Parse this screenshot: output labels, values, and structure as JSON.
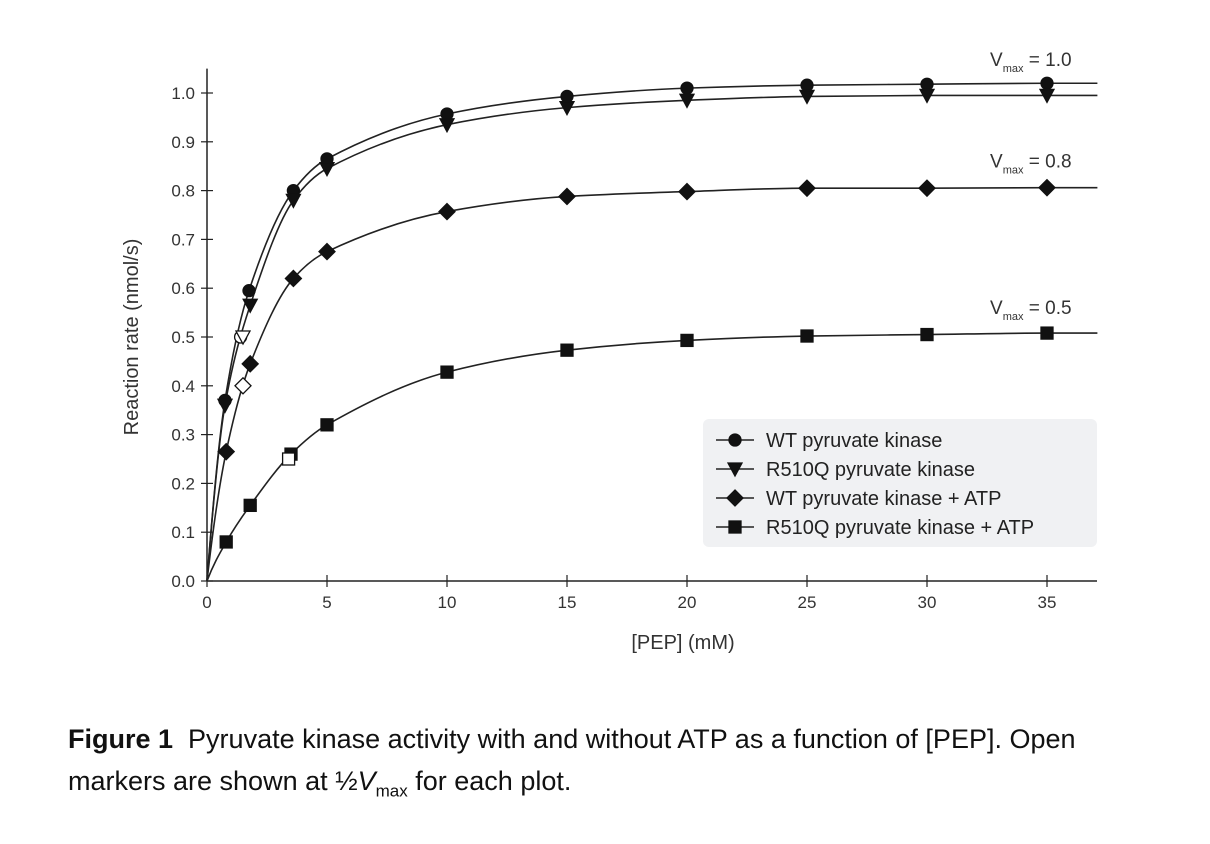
{
  "chart_data": {
    "type": "line",
    "xlabel": "[PEP] (mM)",
    "ylabel": "Reaction rate (nmol/s)",
    "xlim": [
      0,
      37
    ],
    "ylim": [
      0,
      1.0
    ],
    "xticks": [
      0,
      5,
      10,
      15,
      20,
      25,
      30,
      35
    ],
    "yticks": [
      "0.0",
      "0.1",
      "0.2",
      "0.3",
      "0.4",
      "0.5",
      "0.6",
      "0.7",
      "0.8",
      "0.9",
      "1.0"
    ],
    "grid": false,
    "legend_position": "lower-right",
    "series": [
      {
        "name": "WT pyruvate kinase",
        "marker": "circle",
        "x": [
          0.75,
          1.75,
          3.6,
          5,
          10,
          15,
          20,
          25,
          30,
          35
        ],
        "y": [
          0.37,
          0.595,
          0.8,
          0.865,
          0.957,
          0.993,
          1.01,
          1.016,
          1.018,
          1.02
        ],
        "half_vmax_point": {
          "x": 1.4,
          "y": 0.5
        }
      },
      {
        "name": "R510Q pyruvate kinase",
        "marker": "triangle-down",
        "x": [
          0.75,
          1.8,
          3.6,
          5,
          10,
          15,
          20,
          25,
          30,
          35
        ],
        "y": [
          0.36,
          0.565,
          0.78,
          0.845,
          0.935,
          0.97,
          0.985,
          0.993,
          0.995,
          0.995
        ],
        "half_vmax_point": {
          "x": 1.5,
          "y": 0.5
        }
      },
      {
        "name": "WT pyruvate kinase + ATP",
        "marker": "diamond",
        "x": [
          0.8,
          1.8,
          3.6,
          5,
          10,
          15,
          20,
          25,
          30,
          35
        ],
        "y": [
          0.265,
          0.445,
          0.62,
          0.675,
          0.757,
          0.788,
          0.798,
          0.805,
          0.805,
          0.806
        ],
        "half_vmax_point": {
          "x": 1.5,
          "y": 0.4
        }
      },
      {
        "name": "R510Q pyruvate kinase + ATP",
        "marker": "square",
        "x": [
          0.8,
          1.8,
          3.5,
          5,
          10,
          15,
          20,
          25,
          30,
          35
        ],
        "y": [
          0.08,
          0.155,
          0.26,
          0.32,
          0.428,
          0.473,
          0.493,
          0.502,
          0.505,
          0.508
        ],
        "half_vmax_point": {
          "x": 3.4,
          "y": 0.25
        }
      }
    ],
    "annotations": [
      {
        "label": "V",
        "sub": "max",
        "text": "= 1.0",
        "y": 1.0
      },
      {
        "label": "V",
        "sub": "max",
        "text": "= 0.8",
        "y": 0.8
      },
      {
        "label": "V",
        "sub": "max",
        "text": "= 0.5",
        "y": 0.5
      }
    ]
  },
  "caption": {
    "bold": "Figure 1",
    "text1": "Pyruvate kinase activity with and without ATP as a function of [PEP].  Open markers are shown at ½",
    "italic": "V",
    "sub": "max",
    "text2": " for each plot."
  }
}
